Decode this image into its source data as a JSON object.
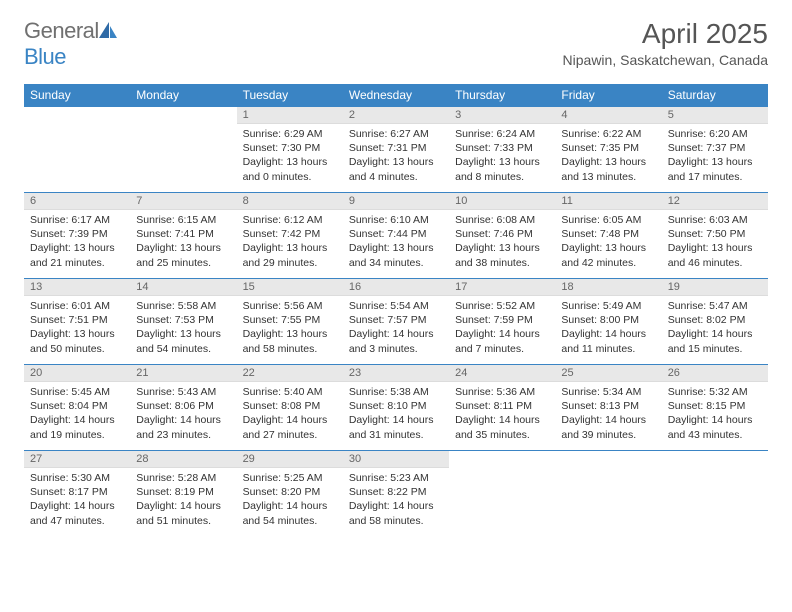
{
  "logo": {
    "text1": "General",
    "text2": "Blue"
  },
  "header": {
    "month_title": "April 2025",
    "location": "Nipawin, Saskatchewan, Canada"
  },
  "style": {
    "header_bg": "#3a84c4",
    "header_fg": "#ffffff",
    "daynum_bg": "#e8e8e8",
    "border_color": "#3a84c4",
    "body_bg": "#ffffff",
    "text_color": "#333333",
    "title_color": "#555555"
  },
  "weekdays": [
    "Sunday",
    "Monday",
    "Tuesday",
    "Wednesday",
    "Thursday",
    "Friday",
    "Saturday"
  ],
  "weeks": [
    [
      {
        "empty": true
      },
      {
        "empty": true
      },
      {
        "num": "1",
        "sunrise": "Sunrise: 6:29 AM",
        "sunset": "Sunset: 7:30 PM",
        "daylight": "Daylight: 13 hours and 0 minutes."
      },
      {
        "num": "2",
        "sunrise": "Sunrise: 6:27 AM",
        "sunset": "Sunset: 7:31 PM",
        "daylight": "Daylight: 13 hours and 4 minutes."
      },
      {
        "num": "3",
        "sunrise": "Sunrise: 6:24 AM",
        "sunset": "Sunset: 7:33 PM",
        "daylight": "Daylight: 13 hours and 8 minutes."
      },
      {
        "num": "4",
        "sunrise": "Sunrise: 6:22 AM",
        "sunset": "Sunset: 7:35 PM",
        "daylight": "Daylight: 13 hours and 13 minutes."
      },
      {
        "num": "5",
        "sunrise": "Sunrise: 6:20 AM",
        "sunset": "Sunset: 7:37 PM",
        "daylight": "Daylight: 13 hours and 17 minutes."
      }
    ],
    [
      {
        "num": "6",
        "sunrise": "Sunrise: 6:17 AM",
        "sunset": "Sunset: 7:39 PM",
        "daylight": "Daylight: 13 hours and 21 minutes."
      },
      {
        "num": "7",
        "sunrise": "Sunrise: 6:15 AM",
        "sunset": "Sunset: 7:41 PM",
        "daylight": "Daylight: 13 hours and 25 minutes."
      },
      {
        "num": "8",
        "sunrise": "Sunrise: 6:12 AM",
        "sunset": "Sunset: 7:42 PM",
        "daylight": "Daylight: 13 hours and 29 minutes."
      },
      {
        "num": "9",
        "sunrise": "Sunrise: 6:10 AM",
        "sunset": "Sunset: 7:44 PM",
        "daylight": "Daylight: 13 hours and 34 minutes."
      },
      {
        "num": "10",
        "sunrise": "Sunrise: 6:08 AM",
        "sunset": "Sunset: 7:46 PM",
        "daylight": "Daylight: 13 hours and 38 minutes."
      },
      {
        "num": "11",
        "sunrise": "Sunrise: 6:05 AM",
        "sunset": "Sunset: 7:48 PM",
        "daylight": "Daylight: 13 hours and 42 minutes."
      },
      {
        "num": "12",
        "sunrise": "Sunrise: 6:03 AM",
        "sunset": "Sunset: 7:50 PM",
        "daylight": "Daylight: 13 hours and 46 minutes."
      }
    ],
    [
      {
        "num": "13",
        "sunrise": "Sunrise: 6:01 AM",
        "sunset": "Sunset: 7:51 PM",
        "daylight": "Daylight: 13 hours and 50 minutes."
      },
      {
        "num": "14",
        "sunrise": "Sunrise: 5:58 AM",
        "sunset": "Sunset: 7:53 PM",
        "daylight": "Daylight: 13 hours and 54 minutes."
      },
      {
        "num": "15",
        "sunrise": "Sunrise: 5:56 AM",
        "sunset": "Sunset: 7:55 PM",
        "daylight": "Daylight: 13 hours and 58 minutes."
      },
      {
        "num": "16",
        "sunrise": "Sunrise: 5:54 AM",
        "sunset": "Sunset: 7:57 PM",
        "daylight": "Daylight: 14 hours and 3 minutes."
      },
      {
        "num": "17",
        "sunrise": "Sunrise: 5:52 AM",
        "sunset": "Sunset: 7:59 PM",
        "daylight": "Daylight: 14 hours and 7 minutes."
      },
      {
        "num": "18",
        "sunrise": "Sunrise: 5:49 AM",
        "sunset": "Sunset: 8:00 PM",
        "daylight": "Daylight: 14 hours and 11 minutes."
      },
      {
        "num": "19",
        "sunrise": "Sunrise: 5:47 AM",
        "sunset": "Sunset: 8:02 PM",
        "daylight": "Daylight: 14 hours and 15 minutes."
      }
    ],
    [
      {
        "num": "20",
        "sunrise": "Sunrise: 5:45 AM",
        "sunset": "Sunset: 8:04 PM",
        "daylight": "Daylight: 14 hours and 19 minutes."
      },
      {
        "num": "21",
        "sunrise": "Sunrise: 5:43 AM",
        "sunset": "Sunset: 8:06 PM",
        "daylight": "Daylight: 14 hours and 23 minutes."
      },
      {
        "num": "22",
        "sunrise": "Sunrise: 5:40 AM",
        "sunset": "Sunset: 8:08 PM",
        "daylight": "Daylight: 14 hours and 27 minutes."
      },
      {
        "num": "23",
        "sunrise": "Sunrise: 5:38 AM",
        "sunset": "Sunset: 8:10 PM",
        "daylight": "Daylight: 14 hours and 31 minutes."
      },
      {
        "num": "24",
        "sunrise": "Sunrise: 5:36 AM",
        "sunset": "Sunset: 8:11 PM",
        "daylight": "Daylight: 14 hours and 35 minutes."
      },
      {
        "num": "25",
        "sunrise": "Sunrise: 5:34 AM",
        "sunset": "Sunset: 8:13 PM",
        "daylight": "Daylight: 14 hours and 39 minutes."
      },
      {
        "num": "26",
        "sunrise": "Sunrise: 5:32 AM",
        "sunset": "Sunset: 8:15 PM",
        "daylight": "Daylight: 14 hours and 43 minutes."
      }
    ],
    [
      {
        "num": "27",
        "sunrise": "Sunrise: 5:30 AM",
        "sunset": "Sunset: 8:17 PM",
        "daylight": "Daylight: 14 hours and 47 minutes."
      },
      {
        "num": "28",
        "sunrise": "Sunrise: 5:28 AM",
        "sunset": "Sunset: 8:19 PM",
        "daylight": "Daylight: 14 hours and 51 minutes."
      },
      {
        "num": "29",
        "sunrise": "Sunrise: 5:25 AM",
        "sunset": "Sunset: 8:20 PM",
        "daylight": "Daylight: 14 hours and 54 minutes."
      },
      {
        "num": "30",
        "sunrise": "Sunrise: 5:23 AM",
        "sunset": "Sunset: 8:22 PM",
        "daylight": "Daylight: 14 hours and 58 minutes."
      },
      {
        "empty": true
      },
      {
        "empty": true
      },
      {
        "empty": true
      }
    ]
  ]
}
